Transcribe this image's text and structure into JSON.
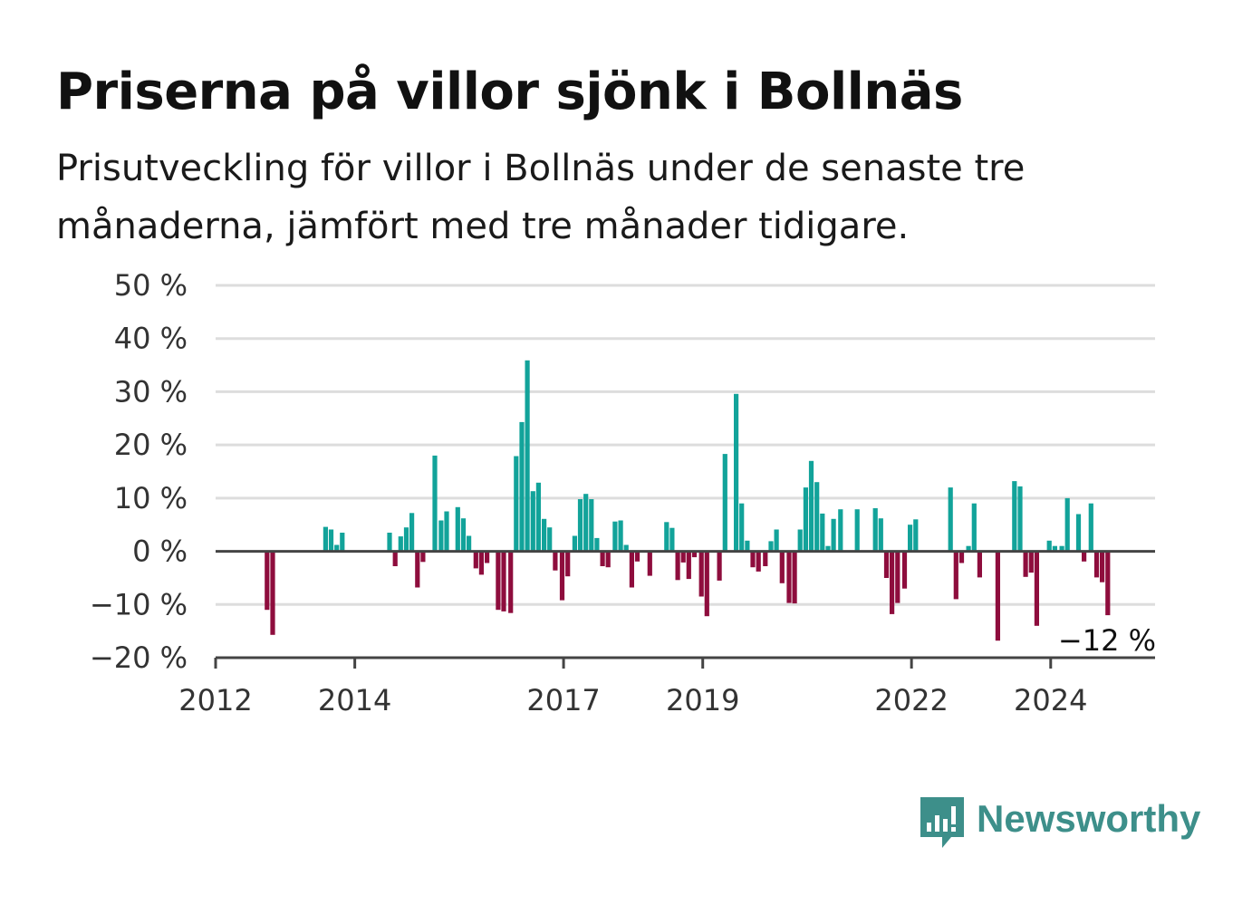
{
  "title": "Priserna på villor sjönk i Bollnäs",
  "subtitle": "Prisutveckling för villor i Bollnäs under de senaste tre månaderna, jämfört med tre månader tidigare.",
  "brand": {
    "name": "Newsworthy",
    "color": "#3d8f8a"
  },
  "colors": {
    "positive": "#12a39a",
    "negative": "#8e0d3d",
    "grid": "#dddddd",
    "axis": "#444444"
  },
  "chart_data": {
    "type": "bar",
    "title": "Priserna på villor sjönk i Bollnäs",
    "xlabel": "",
    "ylabel": "",
    "ylim": [
      -20,
      50
    ],
    "xlim": [
      2012.0,
      2025.5
    ],
    "y_ticks": [
      {
        "value": 50,
        "label": "50 %"
      },
      {
        "value": 40,
        "label": "40 %"
      },
      {
        "value": 30,
        "label": "30 %"
      },
      {
        "value": 20,
        "label": "20 %"
      },
      {
        "value": 10,
        "label": "10 %"
      },
      {
        "value": 0,
        "label": "0 %"
      },
      {
        "value": -10,
        "label": "−10 %"
      },
      {
        "value": -20,
        "label": "−20 %"
      }
    ],
    "x_ticks": [
      {
        "value": 2012,
        "label": "2012"
      },
      {
        "value": 2014,
        "label": "2014"
      },
      {
        "value": 2017,
        "label": "2017"
      },
      {
        "value": 2019,
        "label": "2019"
      },
      {
        "value": 2022,
        "label": "2022"
      },
      {
        "value": 2024,
        "label": "2024"
      }
    ],
    "grid": true,
    "last_value_label": "−12 %",
    "series": [
      {
        "x": [
          2012.74,
          2012.82,
          2013.58,
          2013.66,
          2013.74,
          2013.82,
          2014.5,
          2014.58,
          2014.66,
          2014.74,
          2014.82,
          2014.9,
          2014.98,
          2015.15,
          2015.24,
          2015.32,
          2015.48,
          2015.56,
          2015.64,
          2015.74,
          2015.82,
          2015.9,
          2016.06,
          2016.14,
          2016.24,
          2016.32,
          2016.4,
          2016.48,
          2016.56,
          2016.64,
          2016.72,
          2016.8,
          2016.88,
          2016.98,
          2017.06,
          2017.16,
          2017.24,
          2017.32,
          2017.4,
          2017.48,
          2017.56,
          2017.64,
          2017.74,
          2017.82,
          2017.9,
          2017.98,
          2018.06,
          2018.24,
          2018.48,
          2018.56,
          2018.64,
          2018.72,
          2018.8,
          2018.88,
          2018.98,
          2019.06,
          2019.24,
          2019.32,
          2019.48,
          2019.56,
          2019.64,
          2019.72,
          2019.8,
          2019.9,
          2019.98,
          2020.06,
          2020.14,
          2020.24,
          2020.32,
          2020.4,
          2020.48,
          2020.56,
          2020.64,
          2020.72,
          2020.8,
          2020.88,
          2020.98,
          2021.22,
          2021.48,
          2021.56,
          2021.64,
          2021.72,
          2021.8,
          2021.9,
          2021.98,
          2022.06,
          2022.56,
          2022.64,
          2022.72,
          2022.82,
          2022.9,
          2022.98,
          2023.24,
          2023.48,
          2023.56,
          2023.64,
          2023.72,
          2023.8,
          2023.98,
          2024.06,
          2024.16,
          2024.24,
          2024.4,
          2024.48,
          2024.58,
          2024.66,
          2024.74,
          2024.82
        ],
        "values": [
          -11,
          -15.7,
          4.6,
          4.1,
          1.2,
          3.5,
          3.5,
          -2.8,
          2.8,
          4.5,
          7.2,
          -6.8,
          -2,
          18,
          5.8,
          7.5,
          8.3,
          6.2,
          2.9,
          -3.2,
          -4.4,
          -2.2,
          -11,
          -11.3,
          -11.6,
          17.9,
          24.3,
          35.9,
          11.3,
          12.9,
          6.1,
          4.5,
          -3.6,
          -9.2,
          -4.7,
          2.9,
          9.8,
          10.8,
          9.8,
          2.5,
          -2.8,
          -3,
          5.6,
          5.8,
          1.2,
          -6.8,
          -1.9,
          -4.6,
          5.5,
          4.4,
          -5.4,
          -2.1,
          -5.2,
          -1.1,
          -8.5,
          -12.2,
          -5.5,
          18.3,
          29.6,
          9,
          2,
          -3,
          -3.8,
          -2.8,
          1.9,
          4.1,
          -6,
          -9.7,
          -9.8,
          4.1,
          12,
          17,
          13,
          7.1,
          1,
          6.1,
          7.9,
          7.9,
          8.1,
          6.2,
          -5,
          -11.8,
          -9.7,
          -7,
          5,
          6,
          12,
          -9,
          -2.2,
          1,
          9,
          -4.9,
          -16.8,
          13.2,
          12.2,
          -4.8,
          -4,
          -14,
          2,
          1,
          1,
          10,
          7,
          -1.9,
          9,
          -4.9,
          -5.8,
          -12
        ]
      }
    ]
  }
}
